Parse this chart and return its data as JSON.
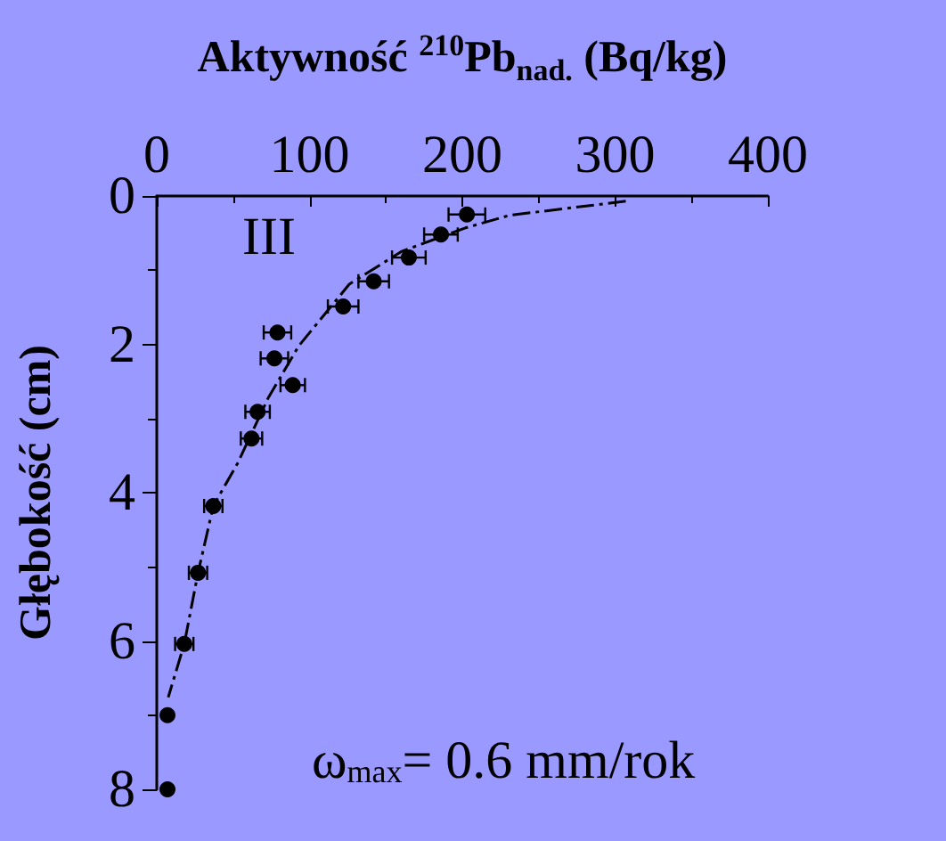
{
  "chart_data": {
    "type": "scatter",
    "xlabel": "Aktywność $^{210}$Pb$_{nad.}$ (Bq/kg)",
    "ylabel": "Głębokość (cm)",
    "xlim": [
      0,
      400
    ],
    "xticks": [
      0,
      100,
      200,
      300,
      400
    ],
    "ylim": [
      8,
      0
    ],
    "yticks": [
      0,
      2,
      4,
      6,
      8
    ],
    "grid": false,
    "legend": false,
    "marker": "circle",
    "annotations": [
      "III",
      "ω$_{max}$= 0.6 mm/rok"
    ],
    "series": [
      {
        "color": "#000000",
        "x": [
          203,
          186,
          165,
          142,
          122,
          79,
          77,
          89,
          66,
          62,
          37,
          27,
          18,
          7,
          7
        ],
        "values": [
          0.25,
          0.52,
          0.83,
          1.15,
          1.49,
          1.84,
          2.19,
          2.55,
          2.91,
          3.27,
          4.18,
          5.08,
          6.04,
          7.0,
          8.0
        ],
        "xerrors": [
          12,
          11,
          11,
          10,
          10,
          9,
          9,
          8,
          8,
          7,
          6,
          6,
          6,
          null,
          null
        ]
      },
      {
        "type": "line",
        "color": "#000000",
        "line_style": "dashed",
        "marker": "none",
        "x": [
          307,
          231,
          202,
          160,
          126,
          93,
          73,
          53,
          37,
          27,
          18,
          7.5
        ],
        "values": [
          0.07,
          0.26,
          0.43,
          0.75,
          1.19,
          2.02,
          2.72,
          3.6,
          4.18,
          5.08,
          6.04,
          6.76
        ]
      }
    ]
  }
}
